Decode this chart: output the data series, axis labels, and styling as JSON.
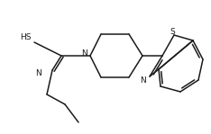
{
  "bg_color": "#ffffff",
  "line_color": "#1a1a1a",
  "line_width": 1.1,
  "font_size": 6.5,
  "figsize": [
    2.34,
    1.49
  ],
  "dpi": 100,
  "xlim": [
    0,
    234
  ],
  "ylim": [
    0,
    149
  ]
}
